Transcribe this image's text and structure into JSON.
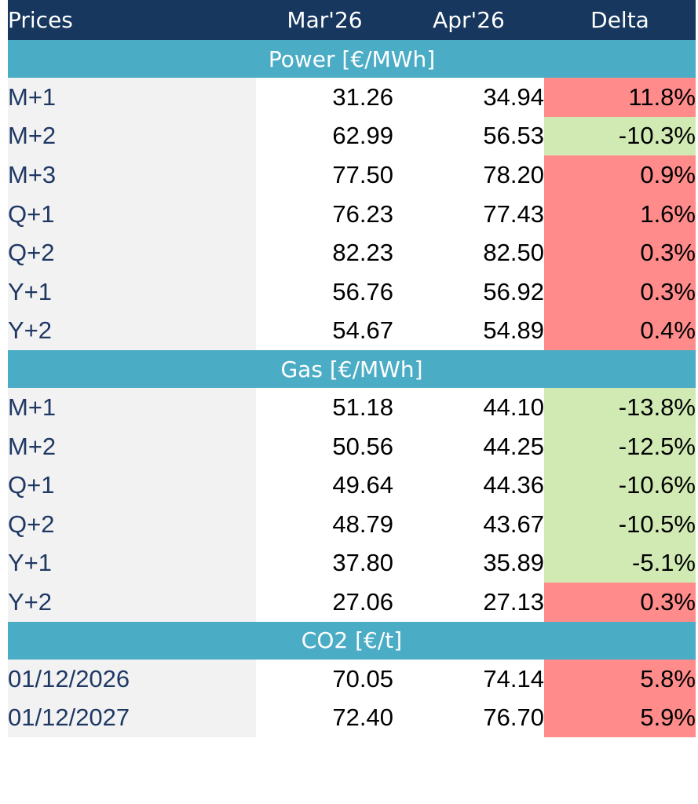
{
  "header": {
    "prices": "Prices",
    "col1": "Mar'26",
    "col2": "Apr'26",
    "delta": "Delta"
  },
  "colors": {
    "header_bg": "#17375e",
    "section_bg": "#4bacc6",
    "label_bg": "#f2f2f2",
    "label_text": "#1f3864",
    "positive_delta_bg": "#ff8b8b",
    "negative_delta_bg": "#d1eab4"
  },
  "sections": [
    {
      "title": "Power [€/MWh]",
      "rows": [
        {
          "label": "M+1",
          "mar": "31.26",
          "apr": "34.94",
          "delta": "11.8%",
          "sign": "pos"
        },
        {
          "label": "M+2",
          "mar": "62.99",
          "apr": "56.53",
          "delta": "-10.3%",
          "sign": "neg"
        },
        {
          "label": "M+3",
          "mar": "77.50",
          "apr": "78.20",
          "delta": "0.9%",
          "sign": "pos"
        },
        {
          "label": "Q+1",
          "mar": "76.23",
          "apr": "77.43",
          "delta": "1.6%",
          "sign": "pos"
        },
        {
          "label": "Q+2",
          "mar": "82.23",
          "apr": "82.50",
          "delta": "0.3%",
          "sign": "pos"
        },
        {
          "label": "Y+1",
          "mar": "56.76",
          "apr": "56.92",
          "delta": "0.3%",
          "sign": "pos"
        },
        {
          "label": "Y+2",
          "mar": "54.67",
          "apr": "54.89",
          "delta": "0.4%",
          "sign": "pos"
        }
      ]
    },
    {
      "title": "Gas [€/MWh]",
      "rows": [
        {
          "label": "M+1",
          "mar": "51.18",
          "apr": "44.10",
          "delta": "-13.8%",
          "sign": "neg"
        },
        {
          "label": "M+2",
          "mar": "50.56",
          "apr": "44.25",
          "delta": "-12.5%",
          "sign": "neg"
        },
        {
          "label": "Q+1",
          "mar": "49.64",
          "apr": "44.36",
          "delta": "-10.6%",
          "sign": "neg"
        },
        {
          "label": "Q+2",
          "mar": "48.79",
          "apr": "43.67",
          "delta": "-10.5%",
          "sign": "neg"
        },
        {
          "label": "Y+1",
          "mar": "37.80",
          "apr": "35.89",
          "delta": "-5.1%",
          "sign": "neg"
        },
        {
          "label": "Y+2",
          "mar": "27.06",
          "apr": "27.13",
          "delta": "0.3%",
          "sign": "pos"
        }
      ]
    },
    {
      "title": "CO2 [€/t]",
      "rows": [
        {
          "label": "01/12/2026",
          "mar": "70.05",
          "apr": "74.14",
          "delta": "5.8%",
          "sign": "pos"
        },
        {
          "label": "01/12/2027",
          "mar": "72.40",
          "apr": "76.70",
          "delta": "5.9%",
          "sign": "pos"
        }
      ]
    }
  ]
}
